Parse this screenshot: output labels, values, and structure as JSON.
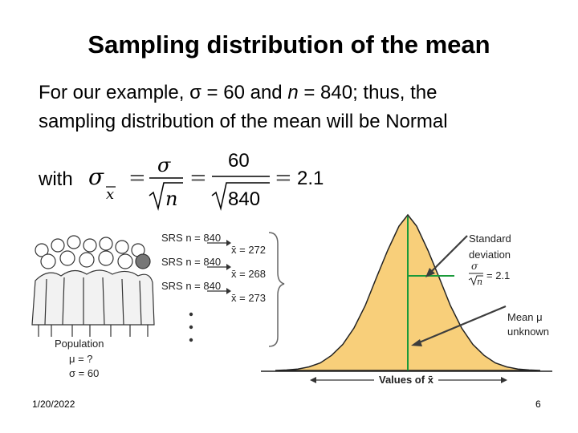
{
  "slide": {
    "title": "Sampling distribution of the mean",
    "line1_prefix": "For our example, σ = 60 and ",
    "line1_n": "n",
    "line1_suffix": " = 840; thus, the",
    "line2": "sampling distribution of the mean will be Normal",
    "with_label": "with",
    "footer_date": "1/20/2022",
    "page_number": "6"
  },
  "formula": {
    "sigma": "σ",
    "xbar": "x",
    "n": "n",
    "numerator": "60",
    "denominator": "840",
    "result": "2.1"
  },
  "diagram": {
    "population_label": "Population",
    "population_mu": "μ = ?",
    "population_sigma": "σ = 60",
    "samples": [
      {
        "label": "SRS n = 840",
        "mean": "x̄ = 272"
      },
      {
        "label": "SRS n = 840",
        "mean": "x̄ = 268"
      },
      {
        "label": "SRS n = 840",
        "mean": "x̄ = 273"
      }
    ],
    "sd_label_line1": "Standard",
    "sd_label_line2": "deviation",
    "sd_formula_sigma": "σ",
    "sd_formula_n": "n",
    "sd_formula_value": "= 2.1",
    "mean_label_line1": "Mean μ",
    "mean_label_line2": "unknown",
    "axis_label": "Values of x̄",
    "curve_fill": "#f8cf7a",
    "line_color": "#1a9a3a",
    "arrow_color": "#3d3d3d"
  }
}
